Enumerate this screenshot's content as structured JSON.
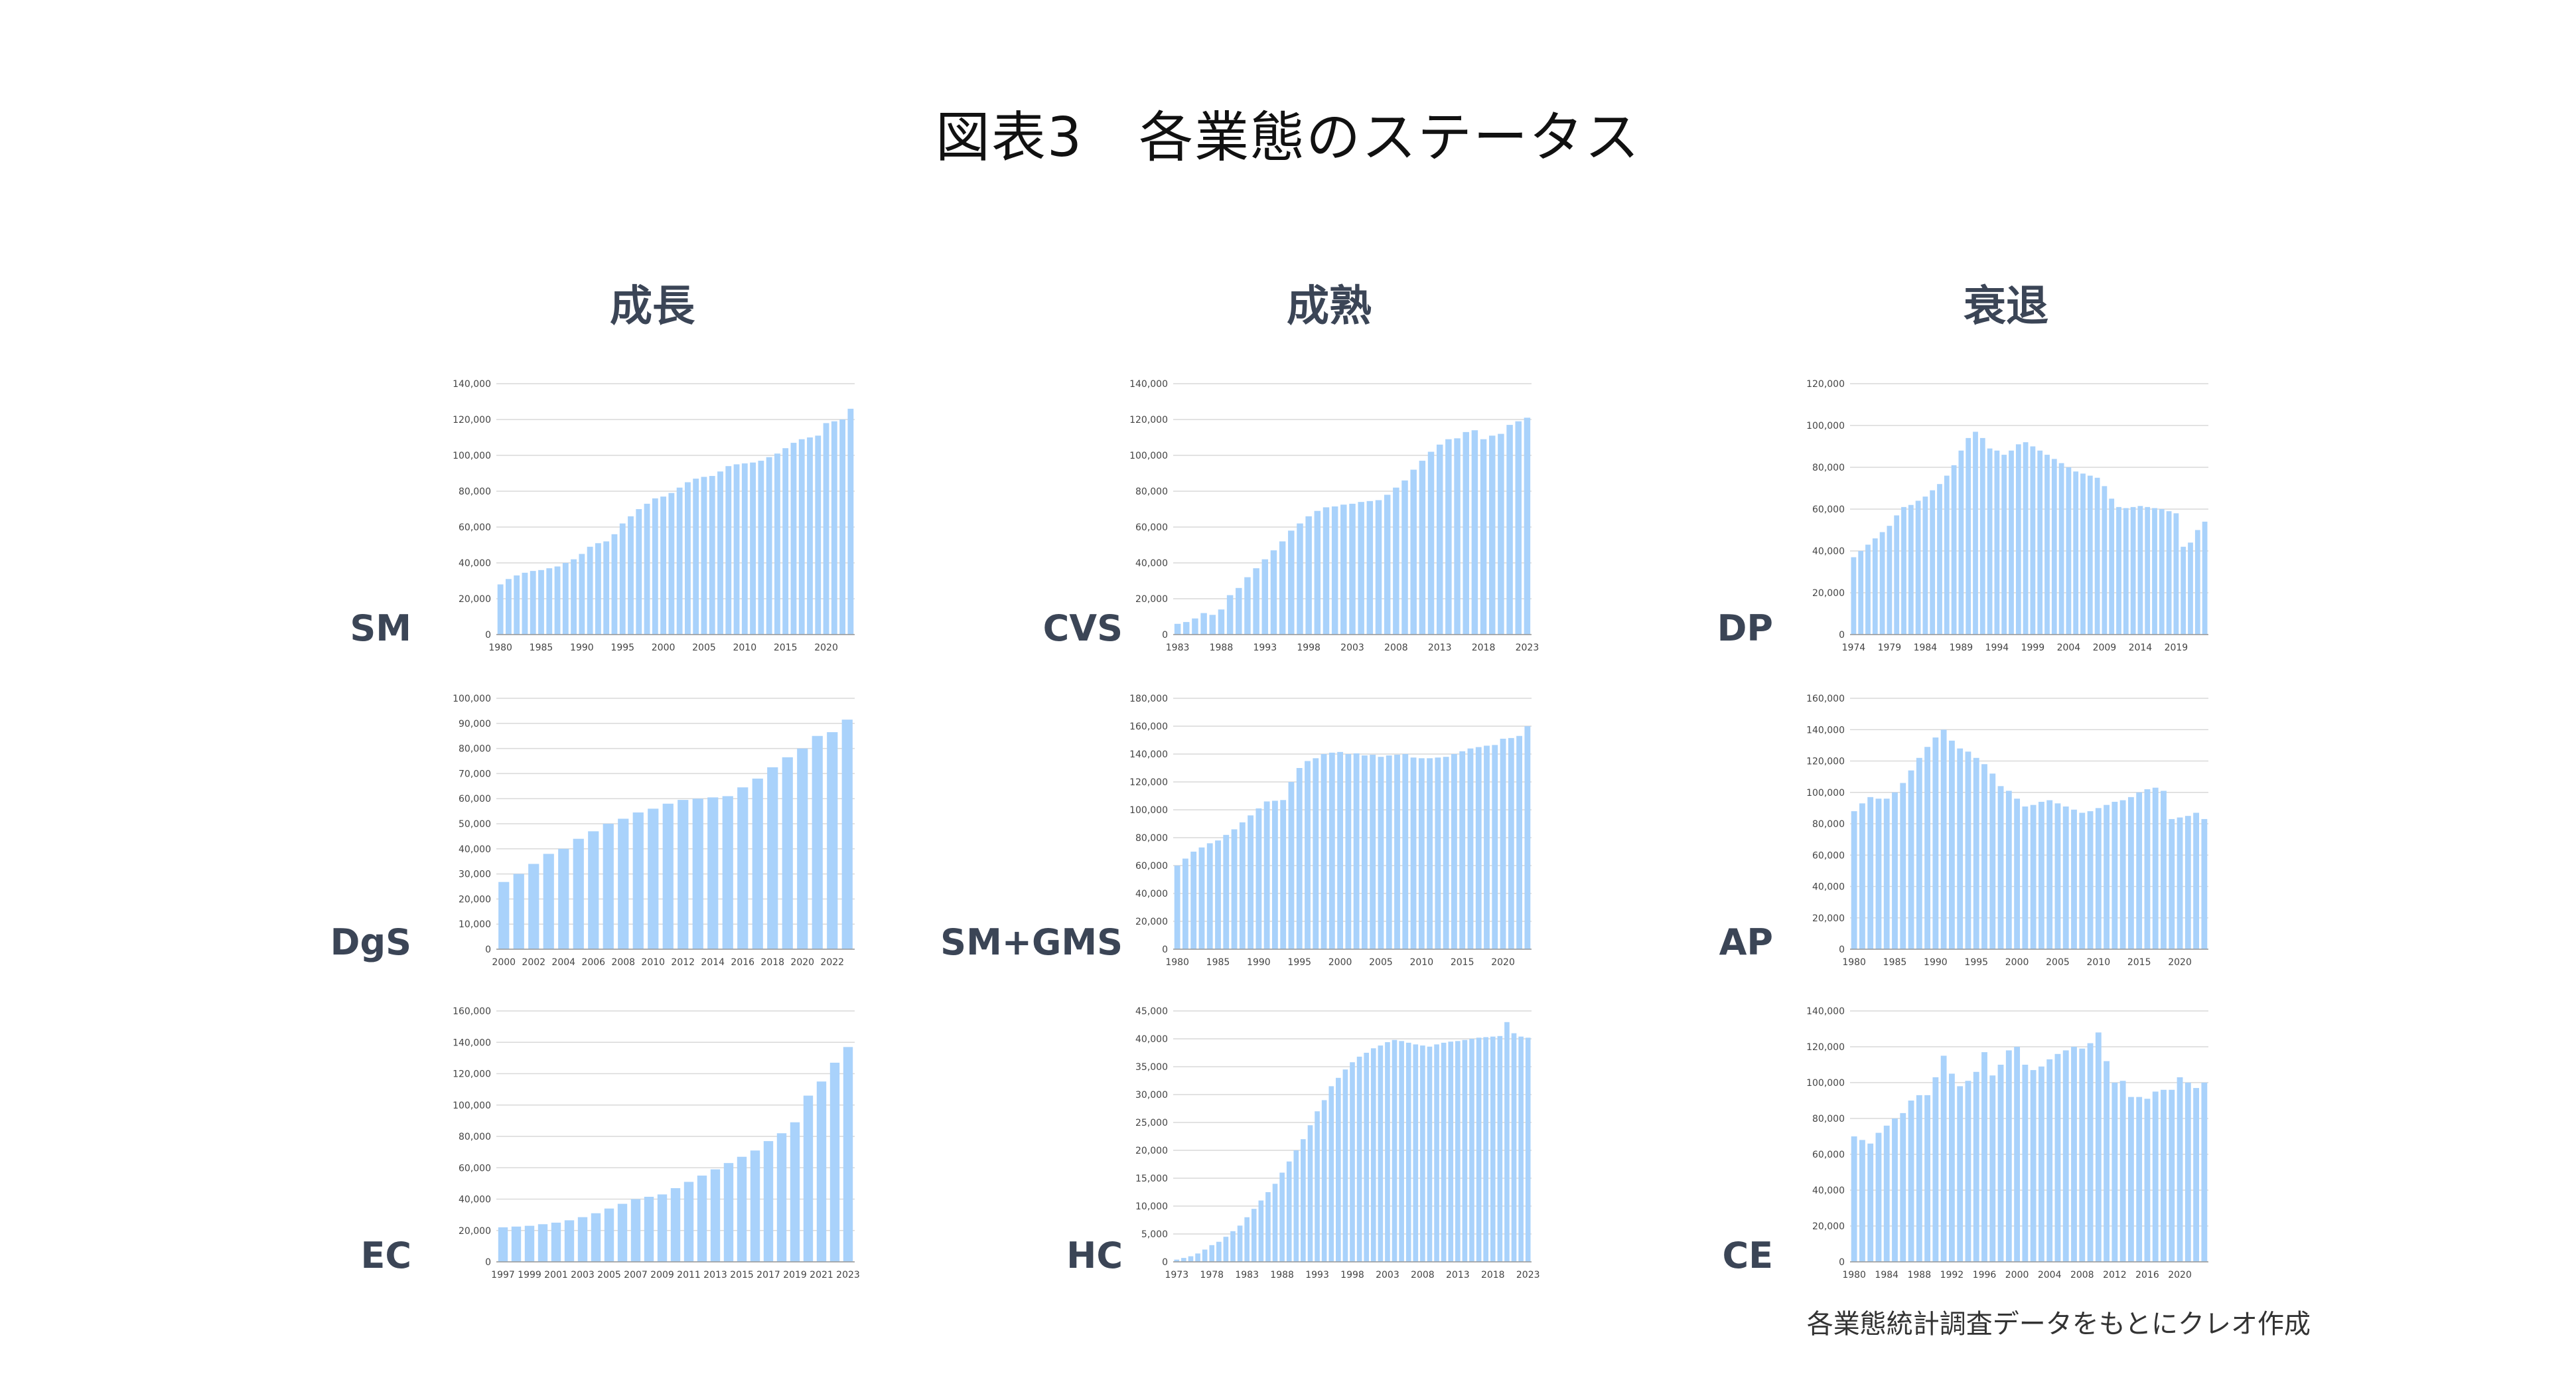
{
  "title": "図表3　各業態のステータス",
  "columns": [
    "成長",
    "成熟",
    "衰退"
  ],
  "source_note": "各業態統計調査データをもとにクレオ作成",
  "colors": {
    "bar": "#a9d2fb",
    "bar_edge": "#8cc1f5",
    "grid": "#d9d9d9",
    "axis": "#999999"
  },
  "chart_data": [
    {
      "id": "sm",
      "label": "SM",
      "type": "bar",
      "ylim": [
        0,
        140000
      ],
      "yticks": [
        0,
        20000,
        40000,
        60000,
        80000,
        100000,
        120000,
        140000
      ],
      "categories": [
        "1980",
        "1981",
        "1982",
        "1983",
        "1984",
        "1985",
        "1986",
        "1987",
        "1988",
        "1989",
        "1990",
        "1991",
        "1992",
        "1993",
        "1994",
        "1995",
        "1996",
        "1997",
        "1998",
        "1999",
        "2000",
        "2001",
        "2002",
        "2003",
        "2004",
        "2005",
        "2006",
        "2007",
        "2008",
        "2009",
        "2010",
        "2011",
        "2012",
        "2013",
        "2014",
        "2015",
        "2016",
        "2017",
        "2018",
        "2019",
        "2020",
        "2021",
        "2022",
        "2023"
      ],
      "xticks": [
        "1980",
        "1985",
        "1990",
        "1995",
        "2000",
        "2005",
        "2010",
        "2015",
        "2020"
      ],
      "values": [
        28000,
        31000,
        33000,
        34500,
        35500,
        36000,
        37000,
        38000,
        40000,
        42000,
        45000,
        49000,
        51000,
        52000,
        56000,
        62000,
        66000,
        70000,
        73000,
        76000,
        77000,
        79000,
        82000,
        85000,
        87000,
        88000,
        88500,
        91000,
        94000,
        95000,
        95500,
        96000,
        97000,
        99000,
        101000,
        104000,
        107000,
        109000,
        110000,
        111000,
        118000,
        119000,
        120000,
        126000
      ]
    },
    {
      "id": "dgs",
      "label": "DgS",
      "type": "bar",
      "ylim": [
        0,
        100000
      ],
      "yticks": [
        0,
        10000,
        20000,
        30000,
        40000,
        50000,
        60000,
        70000,
        80000,
        90000,
        100000
      ],
      "categories": [
        "2000",
        "2001",
        "2002",
        "2003",
        "2004",
        "2005",
        "2006",
        "2007",
        "2008",
        "2009",
        "2010",
        "2011",
        "2012",
        "2013",
        "2014",
        "2015",
        "2016",
        "2017",
        "2018",
        "2019",
        "2020",
        "2021",
        "2022",
        "2023"
      ],
      "xticks": [
        "2000",
        "2002",
        "2004",
        "2006",
        "2008",
        "2010",
        "2012",
        "2014",
        "2016",
        "2018",
        "2020",
        "2022"
      ],
      "values": [
        26800,
        30000,
        34000,
        38000,
        40000,
        44000,
        47000,
        50000,
        52000,
        54500,
        56000,
        58000,
        59500,
        60000,
        60500,
        61000,
        64500,
        68000,
        72500,
        76500,
        80000,
        85000,
        86500,
        91500
      ]
    },
    {
      "id": "ec",
      "label": "EC",
      "type": "bar",
      "ylim": [
        0,
        160000
      ],
      "yticks": [
        0,
        20000,
        40000,
        60000,
        80000,
        100000,
        120000,
        140000,
        160000
      ],
      "categories": [
        "1997",
        "1998",
        "1999",
        "2000",
        "2001",
        "2002",
        "2003",
        "2004",
        "2005",
        "2006",
        "2007",
        "2008",
        "2009",
        "2010",
        "2011",
        "2012",
        "2013",
        "2014",
        "2015",
        "2016",
        "2017",
        "2018",
        "2019",
        "2020",
        "2021",
        "2022",
        "2023"
      ],
      "xticks": [
        "1997",
        "1999",
        "2001",
        "2003",
        "2005",
        "2007",
        "2009",
        "2011",
        "2013",
        "2015",
        "2017",
        "2019",
        "2021",
        "2023"
      ],
      "values": [
        22000,
        22500,
        23000,
        24000,
        25000,
        26500,
        28500,
        31000,
        34000,
        37000,
        40000,
        41500,
        43000,
        47000,
        51000,
        55000,
        59000,
        63000,
        67000,
        71000,
        77000,
        82000,
        89000,
        106000,
        115000,
        127000,
        137000
      ]
    },
    {
      "id": "cvs",
      "label": "CVS",
      "type": "bar",
      "ylim": [
        0,
        140000
      ],
      "yticks": [
        0,
        20000,
        40000,
        60000,
        80000,
        100000,
        120000,
        140000
      ],
      "categories": [
        "1983",
        "1984",
        "1985",
        "1986",
        "1987",
        "1988",
        "1989",
        "1990",
        "1991",
        "1992",
        "1993",
        "1994",
        "1995",
        "1996",
        "1997",
        "1998",
        "1999",
        "2000",
        "2001",
        "2002",
        "2003",
        "2004",
        "2005",
        "2006",
        "2007",
        "2008",
        "2009",
        "2010",
        "2011",
        "2012",
        "2013",
        "2014",
        "2015",
        "2016",
        "2017",
        "2018",
        "2019",
        "2020",
        "2021",
        "2022",
        "2023"
      ],
      "xticks": [
        "1983",
        "1988",
        "1993",
        "1998",
        "2003",
        "2008",
        "2013",
        "2018",
        "2023"
      ],
      "values": [
        6000,
        7000,
        9000,
        12000,
        11000,
        14000,
        22000,
        26000,
        32000,
        37000,
        42000,
        47000,
        52000,
        58000,
        62000,
        66000,
        69000,
        71000,
        71500,
        72500,
        73000,
        74000,
        74500,
        75000,
        78000,
        82000,
        86000,
        92000,
        97000,
        102000,
        106000,
        109000,
        109500,
        113000,
        114000,
        109000,
        111000,
        112000,
        117000,
        119000,
        121000
      ]
    },
    {
      "id": "smgms",
      "label": "SM+GMS",
      "type": "bar",
      "ylim": [
        0,
        180000
      ],
      "yticks": [
        0,
        20000,
        40000,
        60000,
        80000,
        100000,
        120000,
        140000,
        160000,
        180000
      ],
      "categories": [
        "1980",
        "1981",
        "1982",
        "1983",
        "1984",
        "1985",
        "1986",
        "1987",
        "1988",
        "1989",
        "1990",
        "1991",
        "1992",
        "1993",
        "1994",
        "1995",
        "1996",
        "1997",
        "1998",
        "1999",
        "2000",
        "2001",
        "2002",
        "2003",
        "2004",
        "2005",
        "2006",
        "2007",
        "2008",
        "2009",
        "2010",
        "2011",
        "2012",
        "2013",
        "2014",
        "2015",
        "2016",
        "2017",
        "2018",
        "2019",
        "2020",
        "2021",
        "2022",
        "2023"
      ],
      "xticks": [
        "1980",
        "1985",
        "1990",
        "1995",
        "2000",
        "2005",
        "2010",
        "2015",
        "2020"
      ],
      "values": [
        60000,
        65000,
        70000,
        73000,
        76000,
        78000,
        82000,
        86000,
        91000,
        96000,
        101000,
        106000,
        106500,
        107000,
        120000,
        130000,
        135000,
        137000,
        140000,
        141000,
        141500,
        140000,
        140500,
        139000,
        139500,
        138000,
        139000,
        139500,
        140000,
        137500,
        137000,
        137000,
        137500,
        138000,
        140000,
        142000,
        144000,
        145000,
        146000,
        146500,
        151000,
        151500,
        153000,
        160000
      ]
    },
    {
      "id": "hc",
      "label": "HC",
      "type": "bar",
      "ylim": [
        0,
        45000
      ],
      "yticks": [
        0,
        5000,
        10000,
        15000,
        20000,
        25000,
        30000,
        35000,
        40000,
        45000
      ],
      "categories": [
        "1973",
        "1974",
        "1975",
        "1976",
        "1977",
        "1978",
        "1979",
        "1980",
        "1981",
        "1982",
        "1983",
        "1984",
        "1985",
        "1986",
        "1987",
        "1988",
        "1989",
        "1990",
        "1991",
        "1992",
        "1993",
        "1994",
        "1995",
        "1996",
        "1997",
        "1998",
        "1999",
        "2000",
        "2001",
        "2002",
        "2003",
        "2004",
        "2005",
        "2006",
        "2007",
        "2008",
        "2009",
        "2010",
        "2011",
        "2012",
        "2013",
        "2014",
        "2015",
        "2016",
        "2017",
        "2018",
        "2019",
        "2020",
        "2021",
        "2022",
        "2023"
      ],
      "xticks": [
        "1973",
        "1978",
        "1983",
        "1988",
        "1993",
        "1998",
        "2003",
        "2008",
        "2013",
        "2018",
        "2023"
      ],
      "values": [
        400,
        700,
        1000,
        1500,
        2200,
        3000,
        3600,
        4500,
        5500,
        6500,
        8000,
        9500,
        11000,
        12500,
        14000,
        16000,
        18000,
        20000,
        22000,
        24500,
        27000,
        29000,
        31500,
        33000,
        34500,
        35800,
        36800,
        37500,
        38300,
        38800,
        39400,
        39800,
        39600,
        39300,
        39000,
        38800,
        38600,
        39000,
        39300,
        39500,
        39600,
        39800,
        40000,
        40200,
        40300,
        40400,
        40500,
        43000,
        41000,
        40400,
        40200
      ]
    },
    {
      "id": "dp",
      "label": "DP",
      "type": "bar",
      "ylim": [
        0,
        120000
      ],
      "yticks": [
        0,
        20000,
        40000,
        60000,
        80000,
        100000,
        120000
      ],
      "categories": [
        "1974",
        "1975",
        "1976",
        "1977",
        "1978",
        "1979",
        "1980",
        "1981",
        "1982",
        "1983",
        "1984",
        "1985",
        "1986",
        "1987",
        "1988",
        "1989",
        "1990",
        "1991",
        "1992",
        "1993",
        "1994",
        "1995",
        "1996",
        "1997",
        "1998",
        "1999",
        "2000",
        "2001",
        "2002",
        "2003",
        "2004",
        "2005",
        "2006",
        "2007",
        "2008",
        "2009",
        "2010",
        "2011",
        "2012",
        "2013",
        "2014",
        "2015",
        "2016",
        "2017",
        "2018",
        "2019",
        "2020",
        "2021",
        "2022",
        "2023"
      ],
      "xticks": [
        "1974",
        "1979",
        "1984",
        "1989",
        "1994",
        "1999",
        "2004",
        "2009",
        "2014",
        "2019"
      ],
      "values": [
        37000,
        40000,
        43000,
        46000,
        49000,
        52000,
        57000,
        61000,
        62000,
        64000,
        66000,
        69000,
        72000,
        76000,
        81000,
        88000,
        94000,
        97000,
        94000,
        89000,
        88000,
        86000,
        88000,
        91000,
        92000,
        90000,
        88000,
        86000,
        84000,
        82000,
        80000,
        78000,
        77000,
        76000,
        75000,
        71000,
        65000,
        61000,
        60500,
        61000,
        61500,
        61000,
        60500,
        60000,
        59000,
        58000,
        42000,
        44000,
        50000,
        54000
      ]
    },
    {
      "id": "ap",
      "label": "AP",
      "type": "bar",
      "ylim": [
        0,
        160000
      ],
      "yticks": [
        0,
        20000,
        40000,
        60000,
        80000,
        100000,
        120000,
        140000,
        160000
      ],
      "categories": [
        "1980",
        "1981",
        "1982",
        "1983",
        "1984",
        "1985",
        "1986",
        "1987",
        "1988",
        "1989",
        "1990",
        "1991",
        "1992",
        "1993",
        "1994",
        "1995",
        "1996",
        "1997",
        "1998",
        "1999",
        "2000",
        "2001",
        "2002",
        "2003",
        "2004",
        "2005",
        "2006",
        "2007",
        "2008",
        "2009",
        "2010",
        "2011",
        "2012",
        "2013",
        "2014",
        "2015",
        "2016",
        "2017",
        "2018",
        "2019",
        "2020",
        "2021",
        "2022",
        "2023"
      ],
      "xticks": [
        "1980",
        "1985",
        "1990",
        "1995",
        "2000",
        "2005",
        "2010",
        "2015",
        "2020"
      ],
      "values": [
        88000,
        93000,
        97000,
        96000,
        96000,
        100000,
        106000,
        114000,
        122000,
        129000,
        135000,
        140000,
        133000,
        128000,
        126000,
        122000,
        118000,
        112000,
        104000,
        101000,
        96000,
        91000,
        92000,
        94000,
        95000,
        93000,
        91000,
        89000,
        87000,
        88000,
        90000,
        92000,
        94000,
        95000,
        97000,
        100000,
        102000,
        103000,
        101000,
        83000,
        84000,
        85000,
        87000,
        83000
      ]
    },
    {
      "id": "ce",
      "label": "CE",
      "type": "bar",
      "ylim": [
        0,
        140000
      ],
      "yticks": [
        0,
        20000,
        40000,
        60000,
        80000,
        100000,
        120000,
        140000
      ],
      "categories": [
        "1980",
        "1981",
        "1982",
        "1983",
        "1984",
        "1985",
        "1986",
        "1987",
        "1988",
        "1989",
        "1990",
        "1991",
        "1992",
        "1993",
        "1994",
        "1995",
        "1996",
        "1997",
        "1998",
        "1999",
        "2000",
        "2001",
        "2002",
        "2003",
        "2004",
        "2005",
        "2006",
        "2007",
        "2008",
        "2009",
        "2010",
        "2011",
        "2012",
        "2013",
        "2014",
        "2015",
        "2016",
        "2017",
        "2018",
        "2019",
        "2020",
        "2021",
        "2022",
        "2023"
      ],
      "xticks": [
        "1980",
        "1984",
        "1988",
        "1992",
        "1996",
        "2000",
        "2004",
        "2008",
        "2012",
        "2016",
        "2020"
      ],
      "values": [
        70000,
        68000,
        66000,
        72000,
        76000,
        80000,
        83000,
        90000,
        93000,
        93000,
        103000,
        115000,
        105000,
        98000,
        101000,
        106000,
        117000,
        104000,
        110000,
        118000,
        120000,
        110000,
        107000,
        109000,
        113000,
        116000,
        118000,
        120000,
        119000,
        122000,
        128000,
        112000,
        100000,
        101000,
        92000,
        92000,
        91000,
        95000,
        96000,
        96000,
        103000,
        100000,
        97000,
        100000
      ]
    }
  ]
}
